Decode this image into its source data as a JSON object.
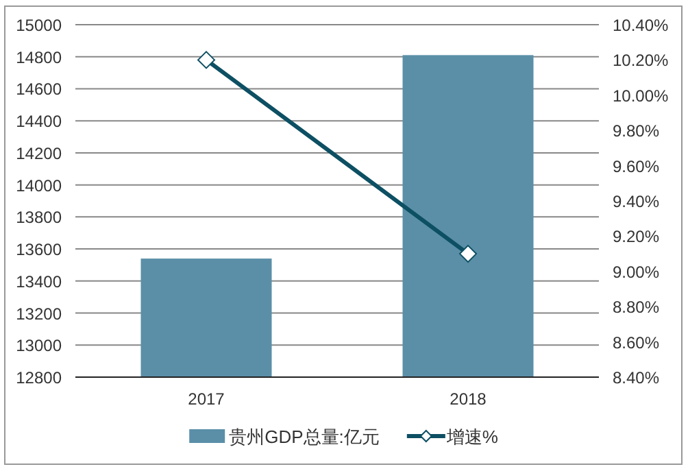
{
  "chart_data": {
    "type": "bar",
    "categories": [
      "2017",
      "2018"
    ],
    "series": [
      {
        "name": "贵州GDP总量:亿元",
        "color": "#5b8fa8",
        "values": [
          13540,
          14810
        ]
      },
      {
        "name": "增速%",
        "type": "line",
        "axis": "y2",
        "color": "#0d4f63",
        "marker": "diamond",
        "values": [
          10.2,
          9.1
        ]
      }
    ],
    "ylim": [
      12800,
      15000
    ],
    "yticks": [
      12800,
      13000,
      13200,
      13400,
      13600,
      13800,
      14000,
      14200,
      14400,
      14600,
      14800,
      15000
    ],
    "y2lim": [
      8.4,
      10.4
    ],
    "y2ticks": [
      {
        "value": 8.4,
        "label": "8.40%"
      },
      {
        "value": 8.6,
        "label": "8.60%"
      },
      {
        "value": 8.8,
        "label": "8.80%"
      },
      {
        "value": 9.0,
        "label": "9.00%"
      },
      {
        "value": 9.2,
        "label": "9.20%"
      },
      {
        "value": 9.4,
        "label": "9.40%"
      },
      {
        "value": 9.6,
        "label": "9.60%"
      },
      {
        "value": 9.8,
        "label": "9.80%"
      },
      {
        "value": 10.0,
        "label": "10.00%"
      },
      {
        "value": 10.2,
        "label": "10.20%"
      },
      {
        "value": 10.4,
        "label": "10.40%"
      }
    ],
    "grid": "y",
    "legend": "bottom"
  }
}
